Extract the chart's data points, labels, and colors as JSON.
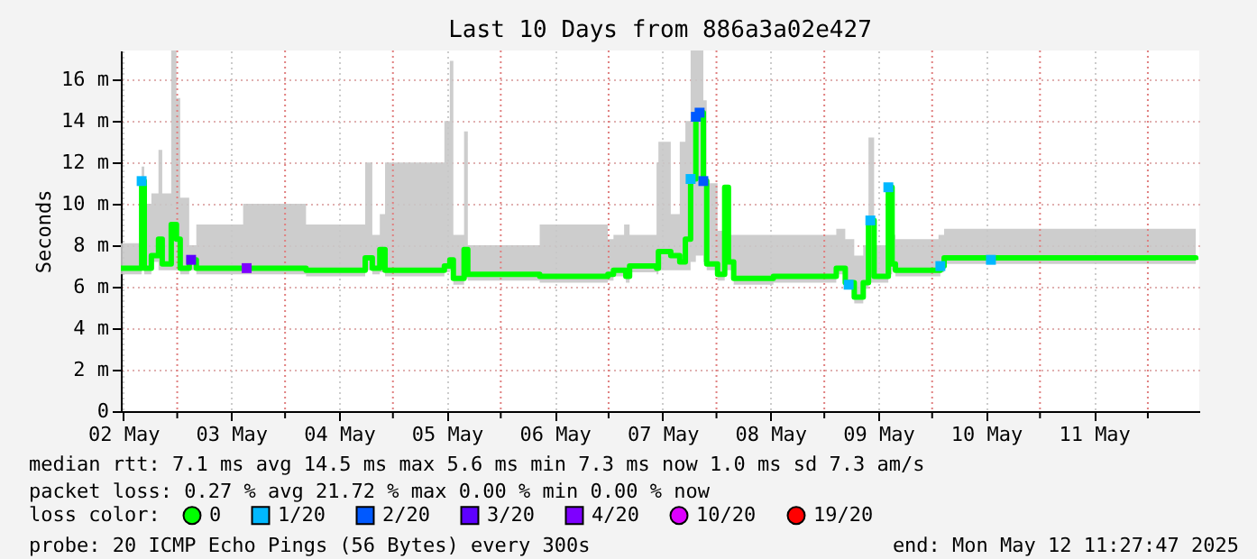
{
  "chart_data": {
    "type": "step",
    "title": "Last 10 Days from 886a3a02e427",
    "ylabel": "Seconds",
    "xlim": [
      "2025-05-02T11:27",
      "2025-05-12T11:27"
    ],
    "xticks": [
      {
        "value": "2025-05-02T12:00",
        "label": "02 May"
      },
      {
        "value": "2025-05-03T00:00",
        "label": null
      },
      {
        "value": "2025-05-03T12:00",
        "label": "03 May"
      },
      {
        "value": "2025-05-04T00:00",
        "label": null
      },
      {
        "value": "2025-05-04T12:00",
        "label": "04 May"
      },
      {
        "value": "2025-05-05T00:00",
        "label": null
      },
      {
        "value": "2025-05-05T12:00",
        "label": "05 May"
      },
      {
        "value": "2025-05-06T00:00",
        "label": null
      },
      {
        "value": "2025-05-06T12:00",
        "label": "06 May"
      },
      {
        "value": "2025-05-07T00:00",
        "label": null
      },
      {
        "value": "2025-05-07T12:00",
        "label": "07 May"
      },
      {
        "value": "2025-05-08T00:00",
        "label": null
      },
      {
        "value": "2025-05-08T12:00",
        "label": "08 May"
      },
      {
        "value": "2025-05-09T00:00",
        "label": null
      },
      {
        "value": "2025-05-09T12:00",
        "label": "09 May"
      },
      {
        "value": "2025-05-10T00:00",
        "label": null
      },
      {
        "value": "2025-05-10T12:00",
        "label": "10 May"
      },
      {
        "value": "2025-05-11T00:00",
        "label": null
      },
      {
        "value": "2025-05-11T12:00",
        "label": "11 May"
      },
      {
        "value": "2025-05-12T00:00",
        "label": null
      }
    ],
    "ylim": [
      0,
      17.4
    ],
    "yticks": [
      0,
      {
        "value": 2,
        "label": "2 m"
      },
      {
        "value": 4,
        "label": "4 m"
      },
      {
        "value": 6,
        "label": "6 m"
      },
      {
        "value": 8,
        "label": "8 m"
      },
      {
        "value": 10,
        "label": "10 m"
      },
      {
        "value": 12,
        "label": "12 m"
      },
      {
        "value": 14,
        "label": "14 m"
      },
      {
        "value": 16,
        "label": "16 m"
      }
    ],
    "grid": true,
    "legend": "bottom left",
    "legend_title": "loss color:",
    "series": [
      {
        "name": "0",
        "color": "#00ff00",
        "x": [
          "2025-05-02T11:27",
          "2025-05-02T15:50",
          "2025-05-02T16:05",
          "2025-05-02T16:40",
          "2025-05-02T18:15",
          "2025-05-02T19:50",
          "2025-05-02T20:40",
          "2025-05-02T22:40",
          "2025-05-02T23:50",
          "2025-05-03T00:40",
          "2025-05-03T02:40",
          "2025-05-03T04:15",
          "2025-05-03T14:40",
          "2025-05-04T04:40",
          "2025-05-04T17:50",
          "2025-05-04T19:25",
          "2025-05-04T21:05",
          "2025-05-04T22:15",
          "2025-05-05T11:27",
          "2025-05-05T12:40",
          "2025-05-05T13:27",
          "2025-05-05T15:50",
          "2025-05-05T16:40",
          "2025-05-06T08:40",
          "2025-05-06T23:50",
          "2025-05-07T01:05",
          "2025-05-07T03:27",
          "2025-05-07T03:50",
          "2025-05-07T04:40",
          "2025-05-07T10:40",
          "2025-05-07T11:05",
          "2025-05-07T13:50",
          "2025-05-07T15:50",
          "2025-05-07T17:05",
          "2025-05-07T18:15",
          "2025-05-07T19:25",
          "2025-05-07T20:15",
          "2025-05-07T21:05",
          "2025-05-07T21:50",
          "2025-05-08T00:15",
          "2025-05-08T01:50",
          "2025-05-08T02:40",
          "2025-05-08T03:50",
          "2025-05-08T12:40",
          "2025-05-09T01:25",
          "2025-05-09T02:40",
          "2025-05-09T04:40",
          "2025-05-09T06:40",
          "2025-05-09T08:40",
          "2025-05-09T09:50",
          "2025-05-09T11:05",
          "2025-05-09T13:25",
          "2025-05-09T14:15",
          "2025-05-09T15:05",
          "2025-05-09T15:50",
          "2025-05-10T01:25",
          "2025-05-10T01:50",
          "2025-05-10T02:40",
          "2025-05-12T10:40"
        ],
        "values": [
          6.9,
          6.9,
          11.1,
          6.9,
          7.5,
          8.3,
          7.1,
          9.0,
          8.3,
          6.9,
          7.3,
          6.9,
          6.9,
          6.8,
          7.4,
          6.9,
          7.8,
          6.8,
          7.0,
          7.3,
          6.4,
          7.8,
          6.6,
          6.5,
          6.6,
          6.8,
          6.8,
          6.5,
          7.0,
          6.9,
          7.7,
          7.5,
          7.2,
          8.3,
          11.2,
          14.2,
          14.4,
          11.1,
          7.1,
          6.6,
          10.8,
          7.2,
          6.4,
          6.5,
          6.5,
          6.9,
          6.2,
          5.5,
          6.2,
          9.2,
          6.5,
          6.5,
          10.8,
          7.1,
          6.8,
          6.8,
          7.0,
          7.4,
          7.3
        ],
        "lower": [
          6.6,
          6.6,
          6.8,
          6.6,
          7.2,
          6.8,
          6.8,
          6.8,
          6.8,
          6.6,
          6.8,
          6.6,
          6.6,
          6.5,
          6.8,
          6.6,
          6.7,
          6.5,
          6.7,
          6.8,
          6.1,
          6.4,
          6.3,
          6.2,
          6.3,
          6.5,
          6.5,
          6.2,
          6.7,
          6.6,
          6.8,
          6.8,
          6.8,
          6.8,
          7.2,
          7.5,
          7.5,
          7.2,
          6.8,
          6.3,
          6.8,
          6.8,
          6.1,
          6.2,
          6.2,
          6.6,
          5.9,
          5.2,
          5.9,
          6.2,
          6.2,
          6.2,
          6.6,
          6.8,
          6.5,
          6.5,
          6.7,
          7.1,
          7.0
        ],
        "upper": [
          8.1,
          9.0,
          11.8,
          10.0,
          10.5,
          12.6,
          10.5,
          17.4,
          15.1,
          10.3,
          8.0,
          9.0,
          10.0,
          9.0,
          12.0,
          8.5,
          9.5,
          12.0,
          14.0,
          16.9,
          8.5,
          13.5,
          8.0,
          9.0,
          8.3,
          8.5,
          9.0,
          9.0,
          8.5,
          12.0,
          13.0,
          9.5,
          13.0,
          14.0,
          17.4,
          17.4,
          17.4,
          15.0,
          11.0,
          8.7,
          10.5,
          8.5,
          8.5,
          8.5,
          8.5,
          8.8,
          8.3,
          7.5,
          8.0,
          13.2,
          8.0,
          8.0,
          10.6,
          8.5,
          8.3,
          8.5,
          8.5,
          8.8,
          8.5
        ]
      },
      {
        "name": "1/20",
        "color": "#00b8ff",
        "type": "scatter",
        "marker": "square",
        "x": [
          "2025-05-02T16:05",
          "2025-05-07T18:15",
          "2025-05-09T05:25",
          "2025-05-09T10:15",
          "2025-05-09T14:15",
          "2025-05-10T01:50",
          "2025-05-10T13:05"
        ],
        "values": [
          11.1,
          11.2,
          6.1,
          9.2,
          10.8,
          7.0,
          7.3
        ]
      },
      {
        "name": "2/20",
        "color": "#0059ff",
        "type": "scatter",
        "marker": "square",
        "x": [
          "2025-05-07T19:25",
          "2025-05-07T20:15",
          "2025-05-07T21:05"
        ],
        "values": [
          14.2,
          14.4,
          11.1
        ]
      },
      {
        "name": "3/20",
        "color": "#5e00ff",
        "type": "scatter",
        "marker": "square",
        "x": [
          "2025-05-03T03:05"
        ],
        "values": [
          7.3
        ]
      },
      {
        "name": "4/20",
        "color": "#7e00ff",
        "type": "scatter",
        "marker": "square",
        "x": [
          "2025-05-03T15:27"
        ],
        "values": [
          6.9
        ]
      },
      {
        "name": "10/20",
        "color": "#dd00ff",
        "type": "scatter"
      },
      {
        "name": "19/20",
        "color": "#ff0000",
        "type": "scatter"
      }
    ],
    "annotations": [
      "median rtt:  7.1 ms avg  14.5 ms max   5.6 ms min   7.3 ms now   1.0 ms sd  7.3   am/s",
      "packet loss: 0.27 % avg  21.72 % max   0.00 % min   0.00 % now",
      "probe:       20 ICMP Echo Pings (56 Bytes) every 300s",
      "end: Mon May 12 11:27:47 2025"
    ]
  }
}
